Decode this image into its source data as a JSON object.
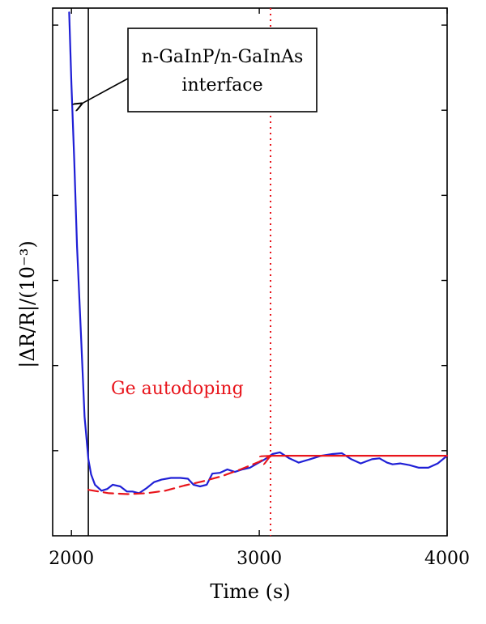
{
  "chart_data": {
    "type": "line",
    "xlabel": "Time (s)",
    "ylabel": "|ΔR/R|/(10⁻³)",
    "xlim": [
      1900,
      4000
    ],
    "ylim": [
      0,
      6.2
    ],
    "x_ticks": [
      2000,
      3000,
      4000
    ],
    "x_tick_labels": [
      "2000",
      "3000",
      "4000"
    ],
    "y_ticks": [
      1,
      2,
      3,
      4,
      5,
      6
    ],
    "grid": false,
    "series": [
      {
        "color": "#1f1fd6",
        "style": "solid",
        "x": [
          1988,
          2000,
          2015,
          2030,
          2050,
          2070,
          2090,
          2105,
          2125,
          2160,
          2190,
          2220,
          2260,
          2295,
          2325,
          2360,
          2400,
          2440,
          2480,
          2530,
          2580,
          2620,
          2650,
          2685,
          2720,
          2750,
          2790,
          2830,
          2870,
          2910,
          2950,
          2990,
          3030,
          3070,
          3110,
          3160,
          3210,
          3270,
          3330,
          3390,
          3440,
          3490,
          3540,
          3600,
          3640,
          3680,
          3710,
          3750,
          3800,
          3850,
          3900,
          3950,
          4000
        ],
        "y": [
          6.15,
          5.3,
          4.4,
          3.4,
          2.4,
          1.4,
          0.9,
          0.72,
          0.6,
          0.53,
          0.55,
          0.6,
          0.58,
          0.52,
          0.52,
          0.5,
          0.56,
          0.63,
          0.66,
          0.68,
          0.68,
          0.67,
          0.6,
          0.58,
          0.6,
          0.73,
          0.74,
          0.78,
          0.75,
          0.78,
          0.8,
          0.85,
          0.9,
          0.96,
          0.98,
          0.91,
          0.86,
          0.9,
          0.94,
          0.96,
          0.97,
          0.9,
          0.85,
          0.9,
          0.91,
          0.86,
          0.84,
          0.85,
          0.83,
          0.8,
          0.8,
          0.85,
          0.94
        ]
      },
      {
        "color": "#e8141b",
        "style": "dashed",
        "x": [
          2090,
          2200,
          2300,
          2400,
          2500,
          2600,
          2700,
          2800,
          2900,
          3000,
          3060
        ],
        "y": [
          0.54,
          0.5,
          0.49,
          0.5,
          0.53,
          0.59,
          0.64,
          0.7,
          0.78,
          0.87,
          0.94
        ]
      },
      {
        "color": "#e8141b",
        "style": "solid",
        "x": [
          3060,
          4000
        ],
        "y": [
          0.94,
          0.94
        ]
      }
    ],
    "vlines": [
      {
        "x": 2090,
        "color": "#000000",
        "style": "solid"
      },
      {
        "x": 3060,
        "color": "#e8141b",
        "style": "dotted"
      }
    ],
    "annotations": [
      {
        "text_lines": [
          "n-GaInP/n-GaInAs",
          "interface"
        ],
        "boxed": true,
        "arrow_to": [
          2030,
          5.05
        ],
        "color": "#000000"
      },
      {
        "text": "Ge autodoping",
        "color": "#e8141b"
      }
    ]
  }
}
